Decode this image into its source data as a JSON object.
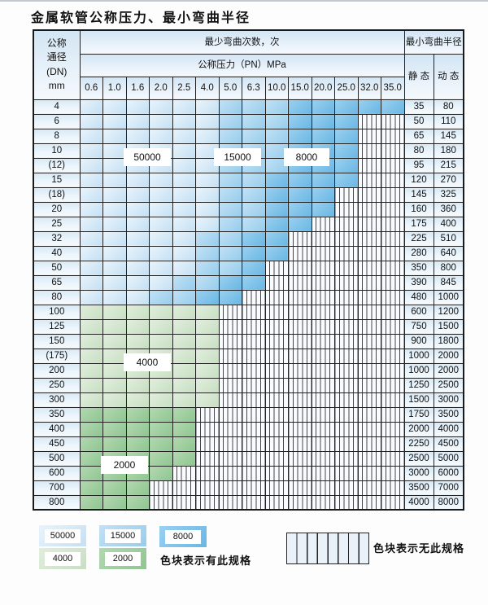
{
  "title": "金属软管公称压力、最小弯曲半径",
  "table": {
    "dn_header_lines": [
      "公称",
      "通径",
      "(DN)",
      "mm"
    ],
    "bend_cycles_header": "最少弯曲次数，次",
    "bend_radius_header": "最小弯曲半径",
    "pressure_header": "公称压力（PN）MPa",
    "pressure_columns": [
      "0.6",
      "1.0",
      "1.6",
      "2.0",
      "2.5",
      "4.0",
      "5.0",
      "6.3",
      "10.0",
      "15.0",
      "20.0",
      "25.0",
      "32.0",
      "35.0"
    ],
    "static_header": "静 态",
    "dynamic_header": "动 态",
    "rows": [
      {
        "dn": "4",
        "bands": [
          {
            "band": "50000",
            "cols": 6
          },
          {
            "band": "15000",
            "cols": 3
          },
          {
            "band": "8000",
            "cols": 5
          }
        ],
        "static": "35",
        "dynamic": "80"
      },
      {
        "dn": "6",
        "bands": [
          {
            "band": "50000",
            "cols": 6
          },
          {
            "band": "15000",
            "cols": 3
          },
          {
            "band": "8000",
            "cols": 3
          },
          {
            "band": "none",
            "cols": 2
          }
        ],
        "static": "50",
        "dynamic": "110"
      },
      {
        "dn": "8",
        "bands": [
          {
            "band": "50000",
            "cols": 6
          },
          {
            "band": "15000",
            "cols": 3
          },
          {
            "band": "8000",
            "cols": 3
          },
          {
            "band": "none",
            "cols": 2
          }
        ],
        "static": "65",
        "dynamic": "145"
      },
      {
        "dn": "10",
        "bands": [
          {
            "band": "50000",
            "cols": 6
          },
          {
            "band": "15000",
            "cols": 3
          },
          {
            "band": "8000",
            "cols": 3
          },
          {
            "band": "none",
            "cols": 2
          }
        ],
        "static": "80",
        "dynamic": "180"
      },
      {
        "dn": "(12)",
        "bands": [
          {
            "band": "50000",
            "cols": 6
          },
          {
            "band": "15000",
            "cols": 3
          },
          {
            "band": "8000",
            "cols": 3
          },
          {
            "band": "none",
            "cols": 2
          }
        ],
        "static": "95",
        "dynamic": "215"
      },
      {
        "dn": "15",
        "bands": [
          {
            "band": "50000",
            "cols": 6
          },
          {
            "band": "15000",
            "cols": 2
          },
          {
            "band": "8000",
            "cols": 4
          },
          {
            "band": "none",
            "cols": 2
          }
        ],
        "static": "120",
        "dynamic": "270"
      },
      {
        "dn": "(18)",
        "bands": [
          {
            "band": "50000",
            "cols": 6
          },
          {
            "band": "15000",
            "cols": 2
          },
          {
            "band": "8000",
            "cols": 3
          },
          {
            "band": "none",
            "cols": 3
          }
        ],
        "static": "145",
        "dynamic": "325"
      },
      {
        "dn": "20",
        "bands": [
          {
            "band": "50000",
            "cols": 6
          },
          {
            "band": "15000",
            "cols": 2
          },
          {
            "band": "8000",
            "cols": 3
          },
          {
            "band": "none",
            "cols": 3
          }
        ],
        "static": "160",
        "dynamic": "360"
      },
      {
        "dn": "25",
        "bands": [
          {
            "band": "50000",
            "cols": 6
          },
          {
            "band": "15000",
            "cols": 2
          },
          {
            "band": "8000",
            "cols": 2
          },
          {
            "band": "none",
            "cols": 4
          }
        ],
        "static": "175",
        "dynamic": "400"
      },
      {
        "dn": "32",
        "bands": [
          {
            "band": "50000",
            "cols": 5
          },
          {
            "band": "15000",
            "cols": 2
          },
          {
            "band": "8000",
            "cols": 2
          },
          {
            "band": "none",
            "cols": 5
          }
        ],
        "static": "225",
        "dynamic": "510"
      },
      {
        "dn": "40",
        "bands": [
          {
            "band": "50000",
            "cols": 5
          },
          {
            "band": "15000",
            "cols": 2
          },
          {
            "band": "8000",
            "cols": 2
          },
          {
            "band": "none",
            "cols": 5
          }
        ],
        "static": "280",
        "dynamic": "640"
      },
      {
        "dn": "50",
        "bands": [
          {
            "band": "50000",
            "cols": 5
          },
          {
            "band": "15000",
            "cols": 2
          },
          {
            "band": "8000",
            "cols": 1
          },
          {
            "band": "none",
            "cols": 6
          }
        ],
        "static": "350",
        "dynamic": "800"
      },
      {
        "dn": "65",
        "bands": [
          {
            "band": "50000",
            "cols": 4
          },
          {
            "band": "15000",
            "cols": 2
          },
          {
            "band": "8000",
            "cols": 2
          },
          {
            "band": "none",
            "cols": 6
          }
        ],
        "static": "390",
        "dynamic": "845"
      },
      {
        "dn": "80",
        "bands": [
          {
            "band": "50000",
            "cols": 3
          },
          {
            "band": "15000",
            "cols": 2
          },
          {
            "band": "8000",
            "cols": 2
          },
          {
            "band": "none",
            "cols": 7
          }
        ],
        "static": "480",
        "dynamic": "1000"
      },
      {
        "dn": "100",
        "bands": [
          {
            "band": "4000",
            "cols": 6
          },
          {
            "band": "none",
            "cols": 8
          }
        ],
        "static": "600",
        "dynamic": "1200"
      },
      {
        "dn": "125",
        "bands": [
          {
            "band": "4000",
            "cols": 6
          },
          {
            "band": "none",
            "cols": 8
          }
        ],
        "static": "750",
        "dynamic": "1500"
      },
      {
        "dn": "150",
        "bands": [
          {
            "band": "4000",
            "cols": 6
          },
          {
            "band": "none",
            "cols": 8
          }
        ],
        "static": "900",
        "dynamic": "1800"
      },
      {
        "dn": "(175)",
        "bands": [
          {
            "band": "4000",
            "cols": 6
          },
          {
            "band": "none",
            "cols": 8
          }
        ],
        "static": "1000",
        "dynamic": "2000"
      },
      {
        "dn": "200",
        "bands": [
          {
            "band": "4000",
            "cols": 6
          },
          {
            "band": "none",
            "cols": 8
          }
        ],
        "static": "1000",
        "dynamic": "2000"
      },
      {
        "dn": "250",
        "bands": [
          {
            "band": "4000",
            "cols": 6
          },
          {
            "band": "none",
            "cols": 8
          }
        ],
        "static": "1250",
        "dynamic": "2500"
      },
      {
        "dn": "300",
        "bands": [
          {
            "band": "4000",
            "cols": 6
          },
          {
            "band": "none",
            "cols": 8
          }
        ],
        "static": "1500",
        "dynamic": "3000"
      },
      {
        "dn": "350",
        "bands": [
          {
            "band": "2000",
            "cols": 5
          },
          {
            "band": "none",
            "cols": 9
          }
        ],
        "static": "1750",
        "dynamic": "3500"
      },
      {
        "dn": "400",
        "bands": [
          {
            "band": "2000",
            "cols": 5
          },
          {
            "band": "none",
            "cols": 9
          }
        ],
        "static": "2000",
        "dynamic": "4000"
      },
      {
        "dn": "450",
        "bands": [
          {
            "band": "2000",
            "cols": 5
          },
          {
            "band": "none",
            "cols": 9
          }
        ],
        "static": "2250",
        "dynamic": "4500"
      },
      {
        "dn": "500",
        "bands": [
          {
            "band": "2000",
            "cols": 5
          },
          {
            "band": "none",
            "cols": 9
          }
        ],
        "static": "2500",
        "dynamic": "5000"
      },
      {
        "dn": "600",
        "bands": [
          {
            "band": "2000",
            "cols": 4
          },
          {
            "band": "none",
            "cols": 10
          }
        ],
        "static": "3000",
        "dynamic": "6000"
      },
      {
        "dn": "700",
        "bands": [
          {
            "band": "2000",
            "cols": 3
          },
          {
            "band": "none",
            "cols": 11
          }
        ],
        "static": "3500",
        "dynamic": "7000"
      },
      {
        "dn": "800",
        "bands": [
          {
            "band": "2000",
            "cols": 3
          },
          {
            "band": "none",
            "cols": 11
          }
        ],
        "static": "4000",
        "dynamic": "8000"
      }
    ]
  },
  "overlay_labels": [
    {
      "text": "50000",
      "pos": "pos-50000"
    },
    {
      "text": "15000",
      "pos": "pos-15000"
    },
    {
      "text": "8000",
      "pos": "pos-8000"
    },
    {
      "text": "4000",
      "pos": "pos-4000"
    },
    {
      "text": "2000",
      "pos": "pos-2000"
    }
  ],
  "legend": {
    "row1": [
      "50000",
      "15000",
      "8000"
    ],
    "row2": [
      "4000",
      "2000"
    ],
    "has_spec_text": "色块表示有此规格",
    "no_spec_text": "色块表示无此规格"
  },
  "colors": {
    "band_50000": "#cde4f5",
    "band_15000": "#a5d3ef",
    "band_8000": "#7bc1e8",
    "band_4000": "#d7e9d3",
    "band_2000": "#9bce9e",
    "header_bg": "#dcebf7",
    "border": "#222222"
  }
}
